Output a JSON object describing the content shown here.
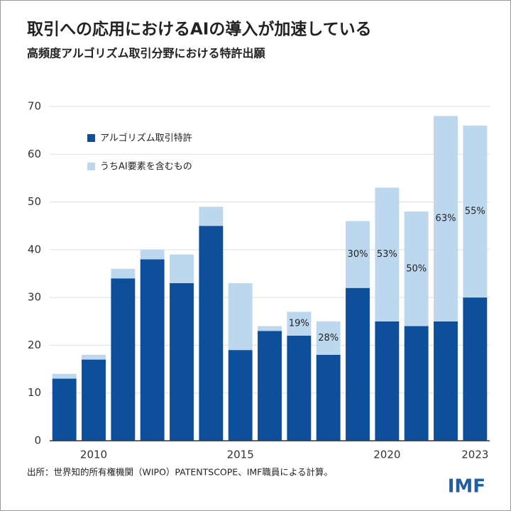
{
  "chart_data": {
    "type": "stacked_bar",
    "title": "取引への応用におけるAIの導入が加速している",
    "subtitle": "高頻度アルゴリズム取引分野における特許出願",
    "source": "出所：世界知的所有権機関（WIPO）PATENTSCOPE、IMF職員による計算。",
    "logo": "IMF",
    "categories": [
      null,
      "2010",
      null,
      null,
      null,
      null,
      "2015",
      null,
      null,
      null,
      null,
      "2020",
      null,
      null,
      "2023"
    ],
    "series": [
      {
        "name": "アルゴリズム取引特許",
        "color": "#0d4f9a",
        "values": [
          13,
          17,
          34,
          38,
          33,
          45,
          19,
          23,
          22,
          18,
          32,
          25,
          24,
          25,
          30
        ]
      },
      {
        "name": "うちAI要素を含むもの",
        "color": "#bcd7ee",
        "values": [
          1,
          1,
          2,
          2,
          6,
          4,
          14,
          1,
          5,
          7,
          14,
          28,
          24,
          43,
          36
        ]
      }
    ],
    "ai_share": {
      "values": [
        null,
        null,
        null,
        null,
        null,
        null,
        null,
        null,
        19,
        28,
        30,
        53,
        50,
        63,
        55
      ],
      "value_labels": [
        null,
        null,
        null,
        null,
        null,
        null,
        null,
        null,
        "19%",
        "28%",
        "30%",
        "53%",
        "50%",
        "63%",
        "55%"
      ]
    },
    "ylim": [
      0,
      70
    ],
    "yticks": [
      0,
      10,
      20,
      30,
      40,
      50,
      60,
      70
    ],
    "grid": true,
    "legend": "upper-left"
  }
}
